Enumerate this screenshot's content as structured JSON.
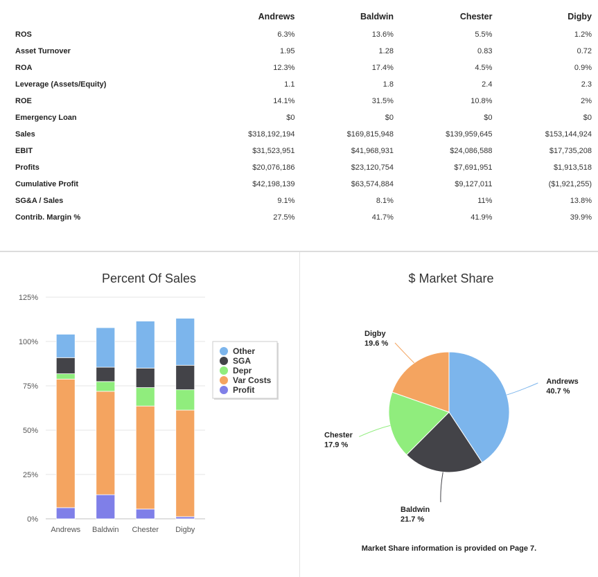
{
  "table": {
    "columns": [
      "Andrews",
      "Baldwin",
      "Chester",
      "Digby"
    ],
    "rows": [
      {
        "label": "ROS",
        "values": [
          "6.3%",
          "13.6%",
          "5.5%",
          "1.2%"
        ]
      },
      {
        "label": "Asset Turnover",
        "values": [
          "1.95",
          "1.28",
          "0.83",
          "0.72"
        ]
      },
      {
        "label": "ROA",
        "values": [
          "12.3%",
          "17.4%",
          "4.5%",
          "0.9%"
        ]
      },
      {
        "label": "Leverage (Assets/Equity)",
        "values": [
          "1.1",
          "1.8",
          "2.4",
          "2.3"
        ]
      },
      {
        "label": "ROE",
        "values": [
          "14.1%",
          "31.5%",
          "10.8%",
          "2%"
        ]
      },
      {
        "label": "Emergency Loan",
        "values": [
          "$0",
          "$0",
          "$0",
          "$0"
        ]
      },
      {
        "label": "Sales",
        "values": [
          "$318,192,194",
          "$169,815,948",
          "$139,959,645",
          "$153,144,924"
        ]
      },
      {
        "label": "EBIT",
        "values": [
          "$31,523,951",
          "$41,968,931",
          "$24,086,588",
          "$17,735,208"
        ]
      },
      {
        "label": "Profits",
        "values": [
          "$20,076,186",
          "$23,120,754",
          "$7,691,951",
          "$1,913,518"
        ]
      },
      {
        "label": "Cumulative Profit",
        "values": [
          "$42,198,139",
          "$63,574,884",
          "$9,127,011",
          "($1,921,255)"
        ]
      },
      {
        "label": "SG&A / Sales",
        "values": [
          "9.1%",
          "8.1%",
          "11%",
          "13.8%"
        ]
      },
      {
        "label": "Contrib. Margin %",
        "values": [
          "27.5%",
          "41.7%",
          "41.9%",
          "39.9%"
        ]
      }
    ]
  },
  "chart_data": [
    {
      "type": "bar",
      "stacked": true,
      "title": "Percent Of Sales",
      "categories": [
        "Andrews",
        "Baldwin",
        "Chester",
        "Digby"
      ],
      "ylim": [
        0,
        125
      ],
      "yticks": [
        0,
        25,
        50,
        75,
        100,
        125
      ],
      "ytick_labels": [
        "0%",
        "25%",
        "50%",
        "75%",
        "100%",
        "125%"
      ],
      "grid": true,
      "legend_position": "right",
      "series": [
        {
          "name": "Profit",
          "color": "#7f7fe8",
          "values": [
            6.3,
            13.6,
            5.5,
            1.2
          ]
        },
        {
          "name": "Var Costs",
          "color": "#f4a460",
          "values": [
            72.5,
            58.3,
            58.1,
            60.1
          ]
        },
        {
          "name": "Depr",
          "color": "#90ed7d",
          "values": [
            3.0,
            5.5,
            10.4,
            11.5
          ]
        },
        {
          "name": "SGA",
          "color": "#434348",
          "values": [
            9.1,
            8.1,
            11.0,
            13.8
          ]
        },
        {
          "name": "Other",
          "color": "#7cb5ec",
          "values": [
            13.2,
            22.3,
            26.5,
            26.5
          ]
        }
      ],
      "legend_order": [
        "Other",
        "SGA",
        "Depr",
        "Var Costs",
        "Profit"
      ]
    },
    {
      "type": "pie",
      "title": "$ Market Share",
      "slices": [
        {
          "name": "Andrews",
          "value": 40.7,
          "label": "40.7 %",
          "color": "#7cb5ec"
        },
        {
          "name": "Baldwin",
          "value": 21.7,
          "label": "21.7 %",
          "color": "#434348"
        },
        {
          "name": "Chester",
          "value": 17.9,
          "label": "17.9 %",
          "color": "#90ed7d"
        },
        {
          "name": "Digby",
          "value": 19.6,
          "label": "19.6 %",
          "color": "#f4a460"
        }
      ]
    }
  ],
  "footer_note": "Market Share information is provided on Page 7."
}
